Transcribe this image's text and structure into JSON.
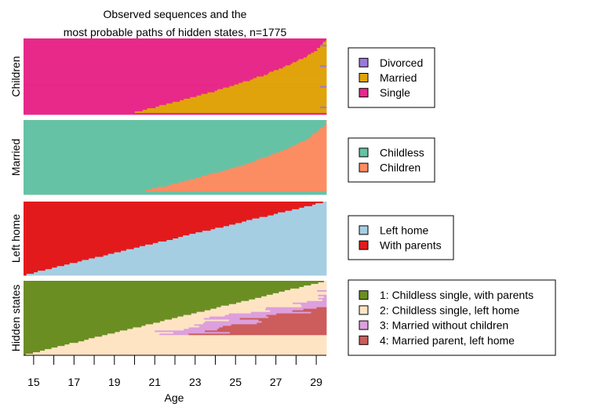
{
  "chart_data": {
    "type": "sequence-index",
    "title_lines": [
      "Observed sequences and the",
      "most probable paths of hidden states, n=1775"
    ],
    "n": 1775,
    "xlabel": "Age",
    "x_ticks": [
      15,
      17,
      19,
      21,
      23,
      25,
      27,
      29
    ],
    "xlim": [
      15,
      30
    ],
    "panels": [
      {
        "name": "Children",
        "states": [
          {
            "label": "Divorced",
            "color": "#9b79d8"
          },
          {
            "label": "Married",
            "color": "#e0a30b"
          },
          {
            "label": "Single",
            "color": "#e7298a"
          }
        ],
        "front": {
          "start_age": 20.5,
          "end_age": 30.0,
          "share_at_end": 0.97,
          "shape": 1.6
        }
      },
      {
        "name": "Married",
        "states": [
          {
            "label": "Childless",
            "color": "#66c2a5"
          },
          {
            "label": "Children",
            "color": "#fc8d62"
          }
        ],
        "front": {
          "start_age": 21.0,
          "end_age": 30.0,
          "share_at_end": 0.95,
          "shape": 1.7
        }
      },
      {
        "name": "Left home",
        "states": [
          {
            "label": "Left home",
            "color": "#a6cee3"
          },
          {
            "label": "With parents",
            "color": "#e31a1c"
          }
        ],
        "front": {
          "start_age": 15.0,
          "end_age": 30.0,
          "share_at_end": 0.95,
          "shape": 1.0
        }
      },
      {
        "name": "Hidden states",
        "states": [
          {
            "label": "1: Childless single, with parents",
            "color": "#6b8e23"
          },
          {
            "label": "2: Childless single, left home",
            "color": "#ffe4c4"
          },
          {
            "label": "3: Married without children",
            "color": "#dda0dd"
          },
          {
            "label": "4: Married parent, left home",
            "color": "#cd5c5c"
          }
        ]
      }
    ]
  }
}
